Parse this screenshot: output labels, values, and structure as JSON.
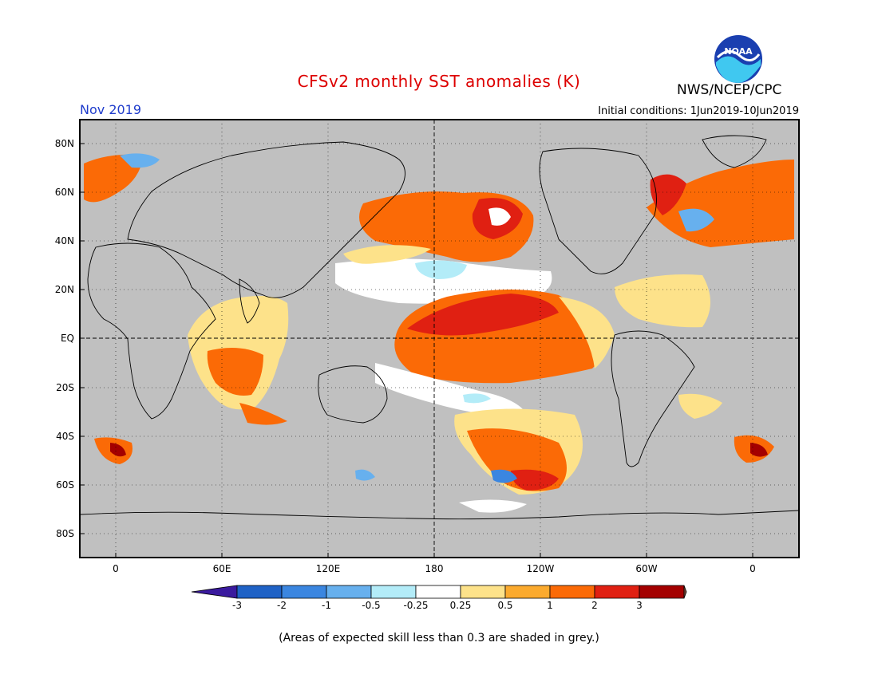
{
  "header": {
    "title": "CFSv2 monthly SST anomalies (K)",
    "organization": "NWS/NCEP/CPC",
    "logo_text": "NOAA",
    "valid_month": "Nov 2019",
    "initial_conditions": "Initial conditions: 1Jun2019-10Jun2019"
  },
  "map": {
    "lat_labels": [
      "80N",
      "60N",
      "40N",
      "20N",
      "EQ",
      "20S",
      "40S",
      "60S",
      "80S"
    ],
    "lon_labels": [
      "0",
      "60E",
      "120E",
      "180",
      "120W",
      "60W",
      "0"
    ],
    "background_color": "#c0c0c0",
    "grid": "dotted"
  },
  "colorbar": {
    "ticks": [
      "-3",
      "-2",
      "-1",
      "-0.5",
      "-0.25",
      "0.25",
      "0.5",
      "1",
      "2",
      "3"
    ],
    "colors": [
      "#3a1a9e",
      "#1f62c6",
      "#3b86e0",
      "#67b0ee",
      "#b3ecf8",
      "#ffffff",
      "#fde28a",
      "#fbaa2e",
      "#fb6a06",
      "#e02012",
      "#a40000",
      "#7b4a39"
    ]
  },
  "footnote": "(Areas of expected skill less than 0.3 are shaded in grey.)"
}
